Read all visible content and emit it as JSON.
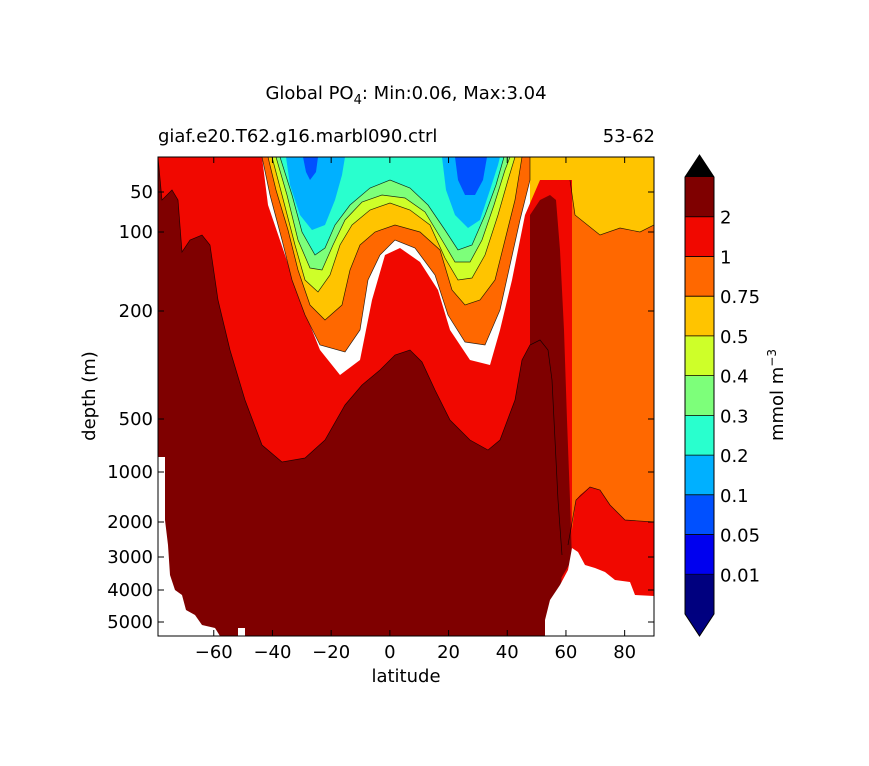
{
  "chart_data": {
    "type": "contour",
    "title": {
      "prefix": "Global PO",
      "subscript": "4",
      "suffix": ": Min:0.06, Max:3.04"
    },
    "subtitle_left": "giaf.e20.T62.g16.marbl090.ctrl",
    "subtitle_right": "53-62",
    "xlabel": "latitude",
    "ylabel": "depth (m)",
    "xlim": [
      -79,
      90
    ],
    "y_scale": "nonlinear (depth)",
    "x_ticks": [
      -60,
      -40,
      -20,
      0,
      20,
      40,
      60,
      80
    ],
    "x_tick_labels": [
      "−60",
      "−40",
      "−20",
      "0",
      "20",
      "40",
      "60",
      "80"
    ],
    "y_ticks": [
      50,
      100,
      200,
      500,
      1000,
      2000,
      3000,
      4000,
      5000
    ],
    "y_tick_labels": [
      "50",
      "100",
      "200",
      "500",
      "1000",
      "2000",
      "3000",
      "4000",
      "5000"
    ],
    "colorbar": {
      "label": {
        "base": "mmol m",
        "exponent": "−3"
      },
      "extend": "both",
      "levels": [
        0.01,
        0.05,
        0.1,
        0.2,
        0.3,
        0.4,
        0.5,
        0.75,
        1,
        2
      ],
      "level_labels": [
        "0.01",
        "0.05",
        "0.1",
        "0.2",
        "0.3",
        "0.4",
        "0.5",
        "0.75",
        "1",
        "2"
      ],
      "colors": [
        "#00007f",
        "#0000ef",
        "#0050ff",
        "#00b0ff",
        "#29ffce",
        "#7dff7a",
        "#ceff29",
        "#ffc400",
        "#ff6800",
        "#f10800",
        "#7f0000"
      ],
      "extend_colors": {
        "under": "#000080",
        "over": "#000000"
      }
    },
    "contour_bands": [
      {
        "level": "> 2",
        "color": "#7f0000",
        "description": "deep ocean, below ~300-1000 m"
      },
      {
        "level": "1-2",
        "color": "#f10800",
        "description": "Southern Ocean surface and intermediate waters"
      },
      {
        "level": "0.75-1",
        "color": "#ff6800",
        "description": "Arctic intermediate/deep water"
      },
      {
        "level": "0.5-0.75",
        "color": "#ffc400",
        "description": "Arctic surface"
      },
      {
        "level": "< 0.2",
        "color": "#00b0ff",
        "description": "subtropical gyre surface minima near 28S and 25N"
      }
    ],
    "annotations": {
      "min": 0.06,
      "max": 3.04
    }
  }
}
